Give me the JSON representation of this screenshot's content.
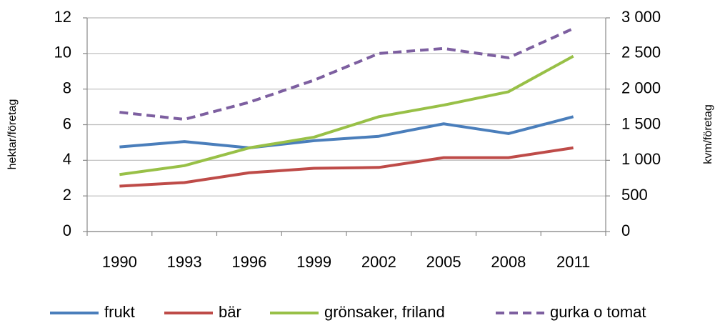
{
  "chart_data": {
    "type": "line",
    "categories": [
      "1990",
      "1993",
      "1996",
      "1999",
      "2002",
      "2005",
      "2008",
      "2011"
    ],
    "ylabel": "hektar/företag",
    "y2label": "kvm/företag",
    "ylim": [
      0,
      12
    ],
    "yticks": [
      0,
      2,
      4,
      6,
      8,
      10,
      12
    ],
    "y2lim": [
      0,
      3000
    ],
    "y2ticks": [
      0,
      500,
      {
        "value": 1000,
        "label": "1 000"
      },
      {
        "value": 1500,
        "label": "1 500"
      },
      {
        "value": 2000,
        "label": "2 000"
      },
      {
        "value": 2500,
        "label": "2 500"
      },
      {
        "value": 3000,
        "label": "3 000"
      }
    ],
    "grid": true,
    "legend": "bottom",
    "series": [
      {
        "name": "frukt",
        "color": "#4a7ebb",
        "values": [
          4.75,
          5.05,
          4.7,
          5.1,
          5.35,
          6.05,
          5.5,
          6.45
        ]
      },
      {
        "name": "bär",
        "color": "#be4b48",
        "values": [
          2.55,
          2.75,
          3.3,
          3.55,
          3.6,
          4.15,
          4.15,
          4.7
        ]
      },
      {
        "name": "grönsaker, friland",
        "color": "#98c047",
        "values": [
          3.2,
          3.7,
          4.7,
          5.3,
          6.45,
          7.1,
          7.85,
          9.85
        ]
      },
      {
        "name": "gurka o tomat",
        "color": "#7d5fa0",
        "dashed": true,
        "axis": "y2",
        "values": [
          1675,
          1575,
          1815,
          2125,
          2500,
          2570,
          2440,
          2850
        ]
      }
    ]
  }
}
